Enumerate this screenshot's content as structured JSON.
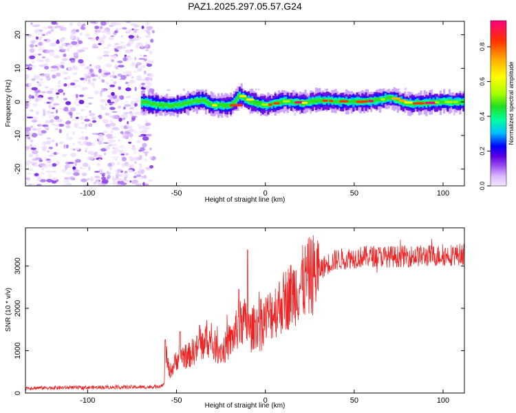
{
  "figure": {
    "title": "PAZ1.2025.297.05.57.G24"
  },
  "chart_data": [
    {
      "type": "heatmap",
      "title": "PAZ1.2025.297.05.57.G24",
      "xlabel": "Height of straight line (km)",
      "ylabel": "Frequency (Hz)",
      "xlim": [
        -135,
        112
      ],
      "ylim": [
        -25,
        24
      ],
      "xticks": [
        -100,
        -50,
        0,
        50,
        100
      ],
      "yticks": [
        -20,
        -10,
        0,
        10,
        20
      ],
      "colorbar": {
        "label": "Normalized spectral amplitude",
        "range": [
          0,
          0.95
        ],
        "ticks": [
          0.0,
          0.2,
          0.4,
          0.6,
          0.8
        ],
        "colors": [
          "#f3e6ff",
          "#d9b8ff",
          "#9a50f0",
          "#5a00e0",
          "#0000ff",
          "#00bfff",
          "#00ffa0",
          "#22dd22",
          "#aaff00",
          "#ffff00",
          "#ffb000",
          "#ff3000",
          "#ff0080"
        ]
      },
      "noise_region": {
        "x_range": [
          -135,
          -63
        ],
        "freq_range": [
          -25,
          24
        ]
      },
      "ridge": {
        "x_range": [
          -70,
          112
        ],
        "center_freq": [
          [
            -70,
            0.0
          ],
          [
            -60,
            -1.0
          ],
          [
            -50,
            -1.0
          ],
          [
            -40,
            0.3
          ],
          [
            -35,
            0.5
          ],
          [
            -30,
            -1.0
          ],
          [
            -20,
            -1.0
          ],
          [
            -15,
            1.8
          ],
          [
            -10,
            0.5
          ],
          [
            -5,
            -0.5
          ],
          [
            0,
            -1.0
          ],
          [
            10,
            0.2
          ],
          [
            20,
            -0.3
          ],
          [
            30,
            0.4
          ],
          [
            40,
            0.2
          ],
          [
            50,
            0.0
          ],
          [
            60,
            0.3
          ],
          [
            70,
            1.2
          ],
          [
            80,
            -0.5
          ],
          [
            90,
            -0.3
          ],
          [
            100,
            0.0
          ],
          [
            112,
            0.0
          ]
        ]
      }
    },
    {
      "type": "line",
      "xlabel": "Height of straight line (km)",
      "ylabel": "SNR (10 * v/v)",
      "xlim": [
        -135,
        112
      ],
      "ylim": [
        0,
        3900
      ],
      "xticks": [
        -100,
        -50,
        0,
        50,
        100
      ],
      "yticks": [
        0,
        1000,
        2000,
        3000
      ],
      "series": [
        {
          "name": "SNR",
          "color": "#ee2222",
          "envelope": [
            [
              -135,
              120
            ],
            [
              -100,
              130
            ],
            [
              -80,
              140
            ],
            [
              -65,
              140
            ],
            [
              -60,
              160
            ],
            [
              -57,
              200
            ],
            [
              -56,
              900
            ],
            [
              -54,
              500
            ],
            [
              -52,
              600
            ],
            [
              -50,
              800
            ],
            [
              -47,
              900
            ],
            [
              -44,
              850
            ],
            [
              -40,
              1000
            ],
            [
              -36,
              1100
            ],
            [
              -33,
              1300
            ],
            [
              -30,
              1150
            ],
            [
              -27,
              1050
            ],
            [
              -24,
              1000
            ],
            [
              -20,
              1200
            ],
            [
              -17,
              1400
            ],
            [
              -15,
              1600
            ],
            [
              -12,
              1700
            ],
            [
              -10,
              1550
            ],
            [
              -8,
              1450
            ],
            [
              -6,
              1600
            ],
            [
              -3,
              1650
            ],
            [
              0,
              1750
            ],
            [
              5,
              1950
            ],
            [
              10,
              2150
            ],
            [
              15,
              2350
            ],
            [
              20,
              2550
            ],
            [
              25,
              2750
            ],
            [
              30,
              2900
            ],
            [
              35,
              3050
            ],
            [
              40,
              3150
            ],
            [
              50,
              3200
            ],
            [
              60,
              3230
            ],
            [
              70,
              3220
            ],
            [
              80,
              3230
            ],
            [
              90,
              3240
            ],
            [
              100,
              3250
            ],
            [
              112,
              3280
            ]
          ]
        }
      ]
    }
  ]
}
